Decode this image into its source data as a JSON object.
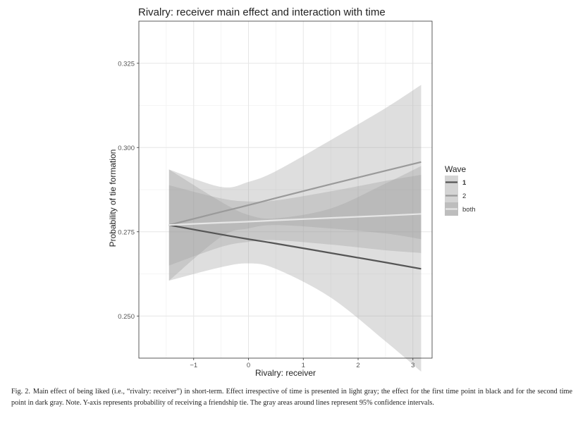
{
  "chart_data": {
    "type": "line",
    "title": "Rivalry: receiver main effect and interaction with time",
    "xlabel": "Rivalry: receiver",
    "ylabel": "Probability of tie formation",
    "xlim": [
      -2.0,
      3.35
    ],
    "ylim": [
      0.2375,
      0.3375
    ],
    "x_ticks": [
      -1,
      0,
      1,
      2,
      3
    ],
    "x_tick_labels": [
      "−1",
      "0",
      "1",
      "2",
      "3"
    ],
    "y_ticks": [
      0.25,
      0.275,
      0.3,
      0.325
    ],
    "y_tick_labels": [
      "0.250",
      "0.275",
      "0.300",
      "0.325"
    ],
    "grid": true,
    "legend": {
      "title": "Wave",
      "placement": "right"
    },
    "series": [
      {
        "name": "1",
        "line_color": "#555555",
        "ribbon_color": "#d4d4d4",
        "x": [
          -1.45,
          -0.5,
          0,
          0.5,
          1.5,
          2.5,
          3.15
        ],
        "y": [
          0.277,
          0.2742,
          0.2728,
          0.2715,
          0.2687,
          0.2659,
          0.264
        ],
        "lower": [
          0.2605,
          0.2645,
          0.2656,
          0.264,
          0.2555,
          0.2425,
          0.2335
        ],
        "upper": [
          0.2935,
          0.2839,
          0.28,
          0.279,
          0.2819,
          0.2893,
          0.2945
        ]
      },
      {
        "name": "2",
        "line_color": "#9a9a9a",
        "ribbon_color": "#d4d4d4",
        "x": [
          -1.45,
          -0.5,
          0,
          0.5,
          1.5,
          2.5,
          3.15
        ],
        "y": [
          0.277,
          0.2809,
          0.2829,
          0.285,
          0.2891,
          0.2931,
          0.2957
        ],
        "lower": [
          0.2605,
          0.2735,
          0.276,
          0.277,
          0.276,
          0.2745,
          0.2728
        ],
        "upper": [
          0.2935,
          0.2883,
          0.2898,
          0.293,
          0.3022,
          0.3117,
          0.3186
        ]
      },
      {
        "name": "both",
        "line_color": "#e6e6e6",
        "ribbon_color": "#bdbdbd",
        "x": [
          -1.45,
          -0.5,
          0,
          0.5,
          1.5,
          2.5,
          3.15
        ],
        "y": [
          0.277,
          0.2777,
          0.278,
          0.2784,
          0.2791,
          0.2798,
          0.2803
        ],
        "lower": [
          0.265,
          0.2705,
          0.272,
          0.2725,
          0.2712,
          0.2695,
          0.2687
        ],
        "upper": [
          0.2888,
          0.2849,
          0.284,
          0.2843,
          0.287,
          0.2901,
          0.2919
        ]
      }
    ]
  },
  "caption": {
    "label": "Fig. 2.",
    "text": "Main effect of being liked (i.e., “rivalry: receiver”) in short-term. Effect irrespective of time is presented in light gray; the effect for the first time point in black and for the second time point in dark gray. Note. Y-axis represents probability of receiving a friendship tie. The gray areas around lines represent 95% confidence intervals."
  }
}
